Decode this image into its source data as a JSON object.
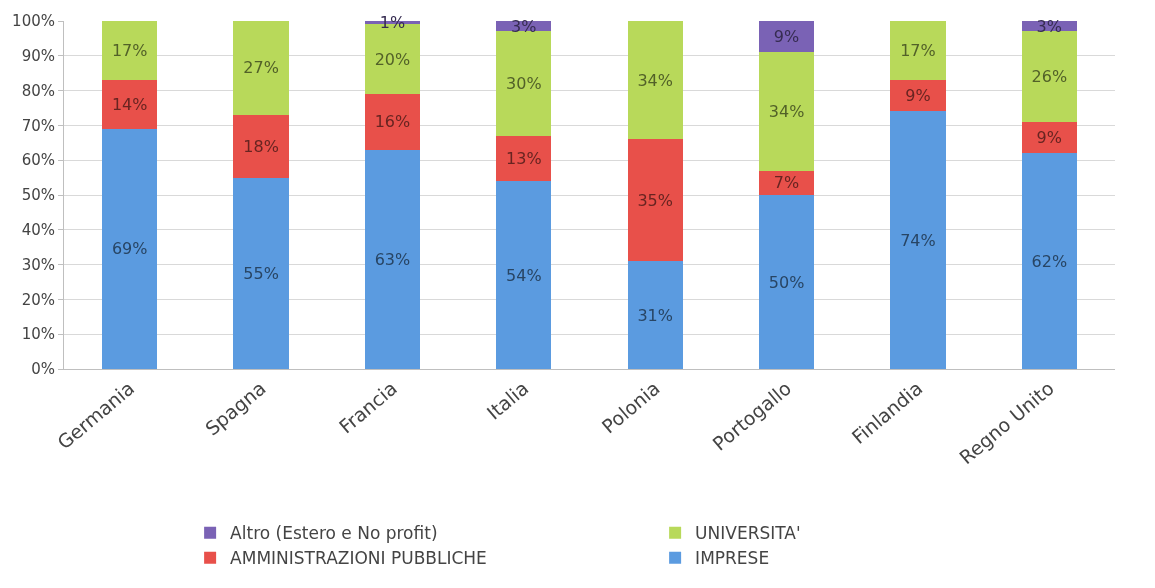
{
  "chart_data": {
    "type": "bar",
    "stacked": true,
    "categories": [
      "Germania",
      "Spagna",
      "Francia",
      "Italia",
      "Polonia",
      "Portogallo",
      "Finlandia",
      "Regno Unito"
    ],
    "series": [
      {
        "name": "IMPRESE",
        "color": "#5b9be0",
        "values": [
          69,
          55,
          63,
          54,
          31,
          50,
          74,
          62
        ],
        "value_labels": [
          "69%",
          "55%",
          "63%",
          "54%",
          "31%",
          "50%",
          "74%",
          "62%"
        ]
      },
      {
        "name": "AMMINISTRAZIONI PUBBLICHE",
        "color": "#e8504a",
        "values": [
          14,
          18,
          16,
          13,
          35,
          7,
          9,
          9
        ],
        "value_labels": [
          "14%",
          "18%",
          "16%",
          "13%",
          "35%",
          "7%",
          "9%",
          "9%"
        ]
      },
      {
        "name": "UNIVERSITA'",
        "color": "#b8d95a",
        "values": [
          17,
          27,
          20,
          30,
          34,
          34,
          17,
          26
        ],
        "value_labels": [
          "17%",
          "27%",
          "20%",
          "30%",
          "34%",
          "34%",
          "17%",
          "26%"
        ]
      },
      {
        "name": "Altro (Estero e No profit)",
        "color": "#7a62b5",
        "values": [
          0,
          0,
          1,
          3,
          0,
          9,
          0,
          3
        ],
        "value_labels": [
          null,
          null,
          "1%",
          "3%",
          null,
          "9%",
          null,
          "3%"
        ]
      }
    ],
    "ylim": [
      0,
      100
    ],
    "yticks": [
      {
        "value": 0,
        "label": "0%"
      },
      {
        "value": 10,
        "label": "10%"
      },
      {
        "value": 20,
        "label": "20%"
      },
      {
        "value": 30,
        "label": "30%"
      },
      {
        "value": 40,
        "label": "40%"
      },
      {
        "value": 50,
        "label": "50%"
      },
      {
        "value": 60,
        "label": "60%"
      },
      {
        "value": 70,
        "label": "70%"
      },
      {
        "value": 80,
        "label": "80%"
      },
      {
        "value": 90,
        "label": "90%"
      },
      {
        "value": 100,
        "label": "100%"
      }
    ],
    "grid": "y",
    "legend": "bottom"
  }
}
